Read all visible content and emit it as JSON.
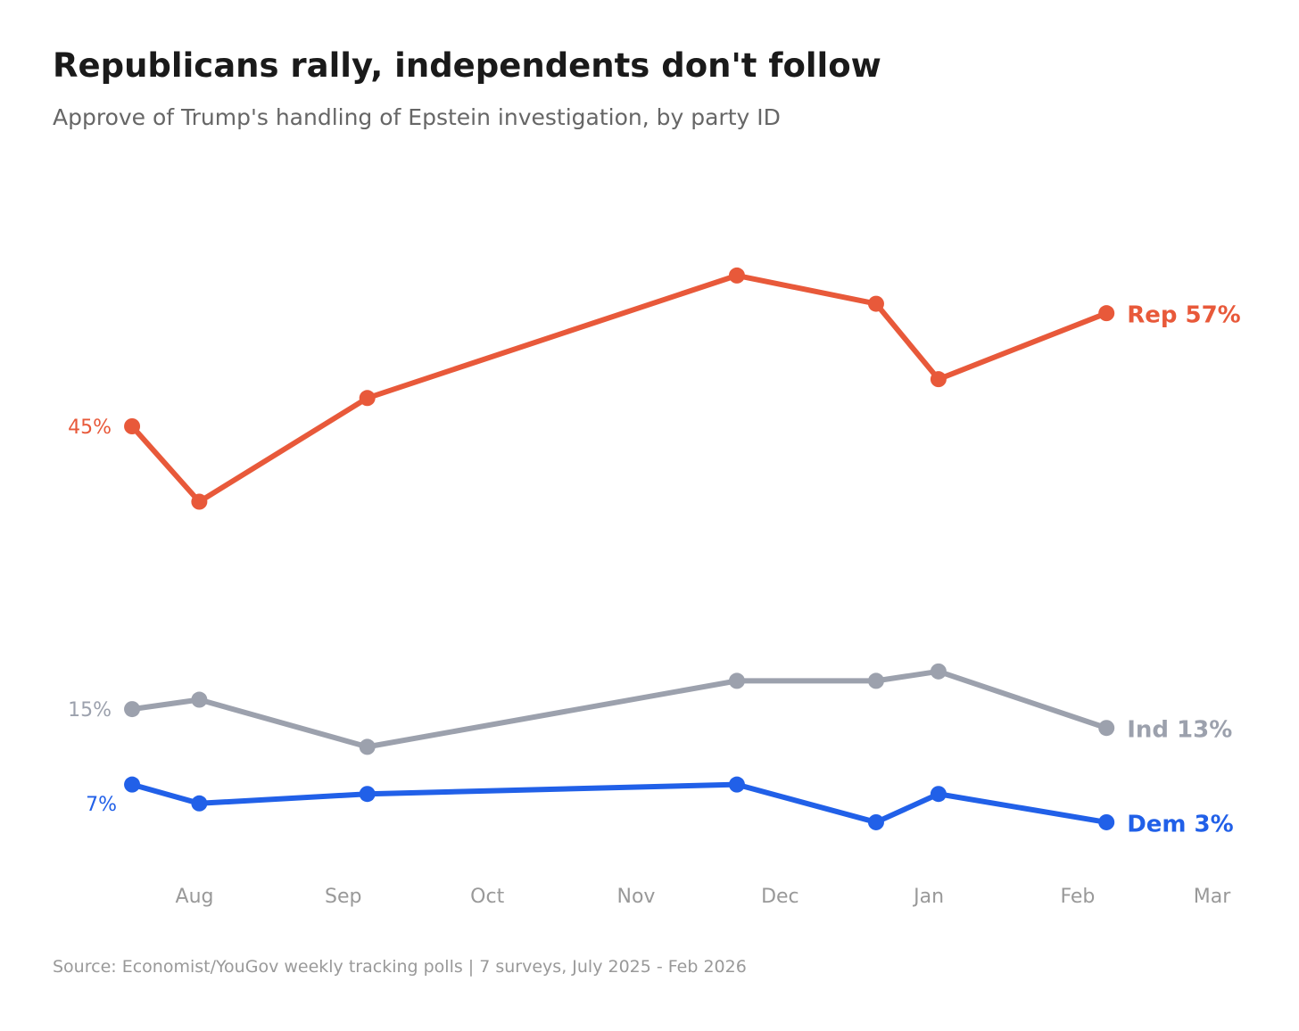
{
  "chart_data": {
    "type": "line",
    "title": "Republicans rally, independents don't follow",
    "subtitle": "Approve of Trump's handling of Epstein investigation, by party ID",
    "source": "Source: Economist/YouGov weekly tracking polls  |  7 surveys, July 2025 - Feb 2026",
    "x": [
      "2025-07-19",
      "2025-08-02",
      "2025-09-06",
      "2025-11-22",
      "2025-12-21",
      "2026-01-03",
      "2026-02-07"
    ],
    "x_ticks": [
      {
        "label": "Aug",
        "date": "2025-08-01"
      },
      {
        "label": "Sep",
        "date": "2025-09-01"
      },
      {
        "label": "Oct",
        "date": "2025-10-01"
      },
      {
        "label": "Nov",
        "date": "2025-11-01"
      },
      {
        "label": "Dec",
        "date": "2025-12-01"
      },
      {
        "label": "Jan",
        "date": "2026-01-01"
      },
      {
        "label": "Feb",
        "date": "2026-02-01"
      },
      {
        "label": "Mar",
        "date": "2026-03-01"
      }
    ],
    "ylabel": "",
    "grid": false,
    "series": [
      {
        "name": "Rep",
        "color": "#e8593a",
        "values": [
          45,
          37,
          48,
          61,
          58,
          50,
          57
        ],
        "start_label": "45%",
        "end_label": "Rep 57%"
      },
      {
        "name": "Ind",
        "color": "#9ca1ad",
        "values": [
          15,
          16,
          11,
          18,
          18,
          19,
          13
        ],
        "start_label": "15%",
        "end_label": "Ind 13%"
      },
      {
        "name": "Dem",
        "color": "#2160e8",
        "values": [
          7,
          5,
          6,
          7,
          3,
          6,
          3
        ],
        "start_label": "7%",
        "end_label": "Dem 3%"
      }
    ]
  }
}
